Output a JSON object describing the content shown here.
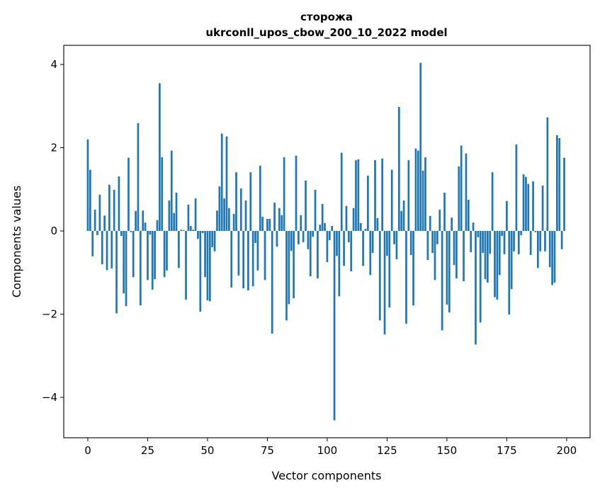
{
  "chart_data": {
    "type": "bar",
    "title": "сторожа",
    "subtitle": "ukrconll_upos_cbow_200_10_2022 model",
    "xlabel": "Vector components",
    "ylabel": "Components values",
    "xlim": [
      -10.05,
      209.8
    ],
    "ylim": [
      -4.97,
      4.46
    ],
    "xticks": [
      0,
      25,
      50,
      75,
      100,
      125,
      150,
      175,
      200
    ],
    "xtick_labels": [
      "0",
      "25",
      "50",
      "75",
      "100",
      "125",
      "150",
      "175",
      "200"
    ],
    "yticks": [
      -4,
      -2,
      0,
      2,
      4
    ],
    "ytick_labels": [
      "−4",
      "−2",
      "0",
      "2",
      "4"
    ],
    "grid": false,
    "color": "#1f77b4",
    "values": [
      2.2,
      1.47,
      -0.61,
      0.51,
      -0.1,
      0.87,
      -0.8,
      0.37,
      -0.94,
      1.11,
      -0.9,
      0.99,
      -1.98,
      1.31,
      -0.12,
      -1.5,
      -1.81,
      1.76,
      -0.03,
      -1.11,
      0.48,
      2.59,
      -1.79,
      0.49,
      0.2,
      -1.18,
      -0.09,
      -1.41,
      -1.16,
      0.26,
      3.55,
      1.77,
      -1.11,
      -0.95,
      0.73,
      1.93,
      0.43,
      0.92,
      -0.89,
      0.03,
      0.02,
      -1.65,
      0.63,
      0.12,
      0.03,
      0.78,
      -0.19,
      -1.94,
      -0.05,
      -1.11,
      -1.67,
      -1.69,
      -0.39,
      -0.49,
      0.49,
      1.07,
      2.34,
      0.78,
      2.27,
      0.55,
      -1.36,
      0.41,
      1.41,
      -1.07,
      1.02,
      -1.38,
      0.73,
      -1.43,
      1.41,
      -1.33,
      -0.29,
      -0.95,
      1.57,
      0.34,
      -1.18,
      0.29,
      0.29,
      -2.47,
      0.68,
      -0.38,
      0.55,
      0.38,
      1.77,
      -2.15,
      -1.76,
      -0.48,
      -1.62,
      1.81,
      -0.32,
      0.38,
      -0.27,
      1.21,
      -0.44,
      -1.09,
      -0.14,
      0.99,
      -1.14,
      0.15,
      0.65,
      0.19,
      -0.75,
      -0.22,
      0.12,
      -4.55,
      -0.6,
      -1.57,
      1.88,
      -0.84,
      0.6,
      -0.27,
      -0.97,
      0.55,
      1.7,
      1.72,
      0.19,
      -0.84,
      0.05,
      1.33,
      -1.06,
      -0.53,
      1.7,
      0.31,
      -2.15,
      1.74,
      -2.49,
      -0.6,
      -1.84,
      1.47,
      -0.32,
      -0.68,
      2.98,
      0.48,
      0.73,
      -2.23,
      1.7,
      -0.58,
      -1.79,
      1.98,
      1.93,
      4.04,
      1.45,
      1.77,
      -0.7,
      0.36,
      -0.53,
      -1.18,
      -0.32,
      0.51,
      -2.39,
      0.92,
      -1.77,
      -1.96,
      0.32,
      -0.82,
      -1.14,
      1.55,
      2.05,
      -1.21,
      1.86,
      0.75,
      -0.51,
      0.2,
      -2.73,
      -0.15,
      -2.2,
      -0.53,
      -1.16,
      -1.24,
      -0.55,
      1.41,
      -1.59,
      -1.65,
      -1.06,
      -0.12,
      -0.56,
      0.72,
      -2.01,
      -1.4,
      -0.49,
      2.08,
      -0.56,
      -0.1,
      1.36,
      1.3,
      1.13,
      -0.58,
      1.19,
      -0.03,
      -0.89,
      -0.49,
      1.09,
      -0.49,
      2.73,
      -0.87,
      -1.3,
      -1.24,
      2.3,
      2.23,
      -0.44,
      1.76
    ]
  }
}
